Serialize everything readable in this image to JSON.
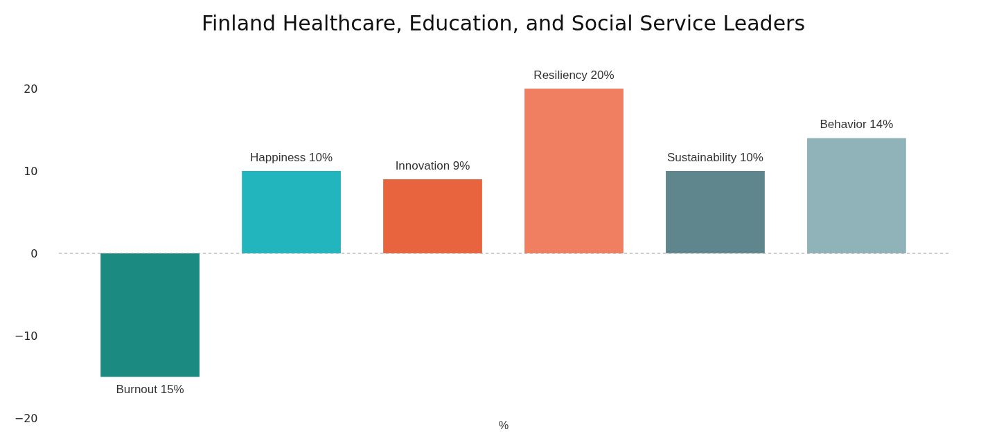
{
  "chart_data": {
    "type": "bar",
    "title": "Finland Healthcare, Education, and Social Service Leaders",
    "xlabel": "%",
    "categories": [
      null,
      null,
      null,
      null,
      null,
      null
    ],
    "values": [
      -15,
      10,
      9,
      20,
      10,
      14
    ],
    "colors": [
      "#1b8a80",
      "#22b5bd",
      "#e8643e",
      "#f07e60",
      "#5e868c",
      "#8fb3b8"
    ],
    "value_labels": [
      "Burnout 15%",
      "Happiness 10%",
      "Innovation 9%",
      "Resiliency 20%",
      "Sustainability 10%",
      "Behavior 14%"
    ],
    "ylim": [
      -20,
      20
    ],
    "yticks": [
      -20,
      -10,
      0,
      10,
      20
    ],
    "grid": false,
    "ref_lines": [
      {
        "axis": "y",
        "value": 0,
        "color": "#999999",
        "line_style": "dashed"
      }
    ]
  }
}
